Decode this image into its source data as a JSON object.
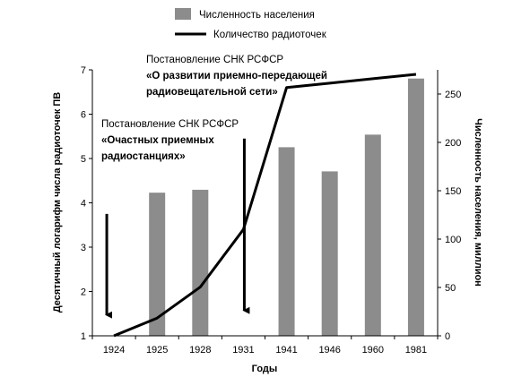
{
  "chart_data": {
    "type": "bar+line",
    "categories": [
      "1924",
      "1925",
      "1928",
      "1931",
      "1941",
      "1946",
      "1960",
      "1981"
    ],
    "series": [
      {
        "name": "Численность населения",
        "kind": "bar",
        "axis": "right",
        "values": [
          null,
          148,
          151,
          null,
          195,
          170,
          208,
          266
        ],
        "color": "#8c8c8c"
      },
      {
        "name": "Количество радиоточек",
        "kind": "line",
        "axis": "left",
        "values": [
          1.0,
          1.4,
          2.1,
          3.4,
          6.6,
          6.7,
          6.8,
          6.9
        ],
        "color": "#000000"
      }
    ],
    "xlabel": "Годы",
    "ylabel": "Десятичный логарифм числа радиоточек ПВ",
    "y2label": "Численность населения, миллион",
    "ylim": [
      1,
      7
    ],
    "yticks": [
      1,
      2,
      3,
      4,
      5,
      6,
      7
    ],
    "y2lim": [
      0,
      275
    ],
    "y2ticks": [
      0,
      50,
      100,
      150,
      200,
      250
    ],
    "grid": false,
    "legend_position": "top",
    "annotations": [
      {
        "id": "ann-1924",
        "category": "1924",
        "lines": [
          {
            "text": "Постановление СНК РСФСР",
            "bold": false
          },
          {
            "text": "«Очастных приемных",
            "bold": true
          },
          {
            "text": "радиостанциях»",
            "bold": true
          }
        ],
        "arrow_from": 3.75,
        "arrow_to": 1.35
      },
      {
        "id": "ann-1931",
        "category": "1931",
        "lines": [
          {
            "text": "Постановление СНК РСФСР",
            "bold": false
          },
          {
            "text": "«О развитии приемно-передающей",
            "bold": true
          },
          {
            "text": "радиовещательной сети»",
            "bold": true
          }
        ],
        "arrow_from": 5.45,
        "arrow_to": 1.45
      }
    ]
  }
}
